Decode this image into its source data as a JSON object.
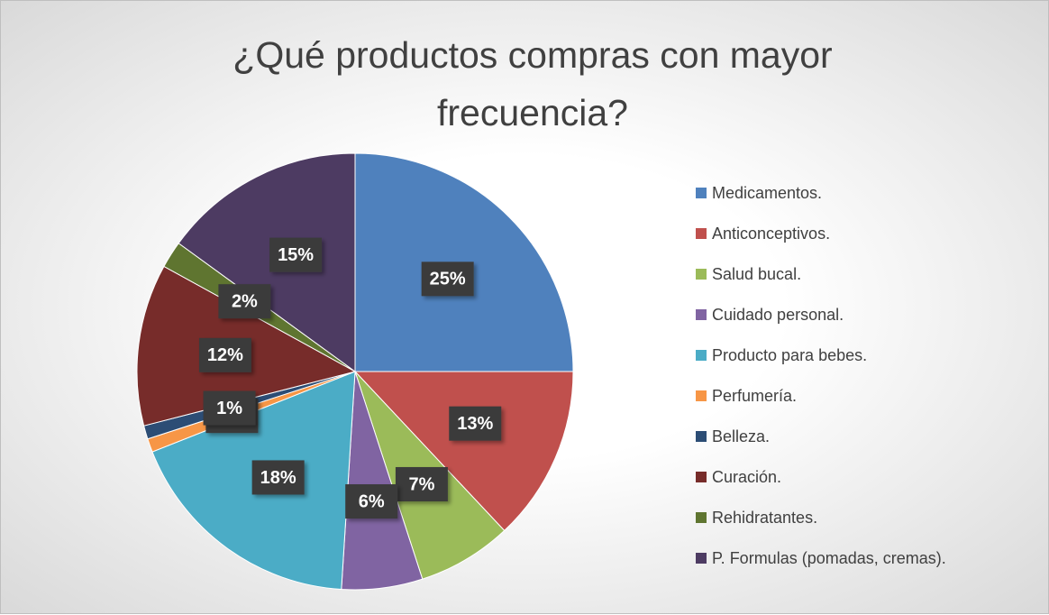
{
  "chart_data": {
    "type": "pie",
    "title": "¿Qué productos compras con mayor frecuencia?",
    "categories": [
      "Medicamentos.",
      "Anticonceptivos.",
      "Salud bucal.",
      "Cuidado personal.",
      " Producto para bebes.",
      "Perfumería.",
      "Belleza.",
      "Curación.",
      "Rehidratantes.",
      "P. Formulas  (pomadas, cremas)."
    ],
    "values": [
      25,
      13,
      7,
      6,
      18,
      1,
      1,
      12,
      2,
      15
    ],
    "value_labels": [
      "25%",
      "13%",
      "7%",
      "6%",
      "18%",
      "1%",
      "1%",
      "12%",
      "2%",
      "15%"
    ],
    "colors": [
      "#4f81bd",
      "#c0504d",
      "#9bbb59",
      "#8064a2",
      "#4bacc6",
      "#f79646",
      "#2c4d75",
      "#772c2a",
      "#5f7530",
      "#4d3b62"
    ]
  }
}
